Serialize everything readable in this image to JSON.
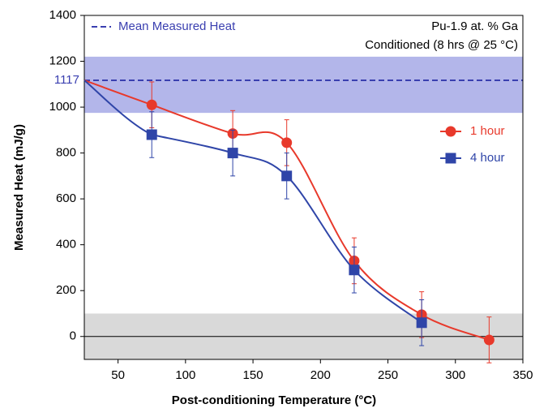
{
  "chart_data": {
    "type": "line",
    "x_label": "Post-conditioning Temperature (°C)",
    "y_label": "Measured Heat (mJ/g)",
    "xlim": [
      25,
      350
    ],
    "xticks": [
      50,
      100,
      150,
      200,
      250,
      300,
      350
    ],
    "ylim": [
      -100,
      1400
    ],
    "yticks": [
      0,
      200,
      400,
      600,
      800,
      1000,
      1200,
      1400
    ],
    "mean_line": {
      "name": "Mean Measured Heat",
      "value": 1117,
      "label": "1117",
      "color": "#3a3fb0"
    },
    "bands": [
      {
        "range": [
          975,
          1220
        ],
        "color": "#b3b6ea"
      },
      {
        "range": [
          -100,
          100
        ],
        "color": "#d9d9d9"
      }
    ],
    "annotations": [
      "Pu-1.9 at. % Ga",
      "Conditioned (8 hrs @ 25 °C)"
    ],
    "series": [
      {
        "name": "1 hour",
        "color": "#e8392b",
        "marker": "circle",
        "x": [
          75,
          135,
          175,
          225,
          275,
          325
        ],
        "values": [
          1010,
          885,
          845,
          330,
          95,
          -15
        ],
        "errors": [
          100,
          100,
          100,
          100,
          100,
          100
        ]
      },
      {
        "name": "4 hour",
        "color": "#2f45a8",
        "marker": "square",
        "x": [
          75,
          135,
          175,
          225,
          275
        ],
        "values": [
          880,
          800,
          700,
          290,
          60
        ],
        "errors": [
          100,
          100,
          100,
          100,
          100
        ]
      }
    ]
  }
}
